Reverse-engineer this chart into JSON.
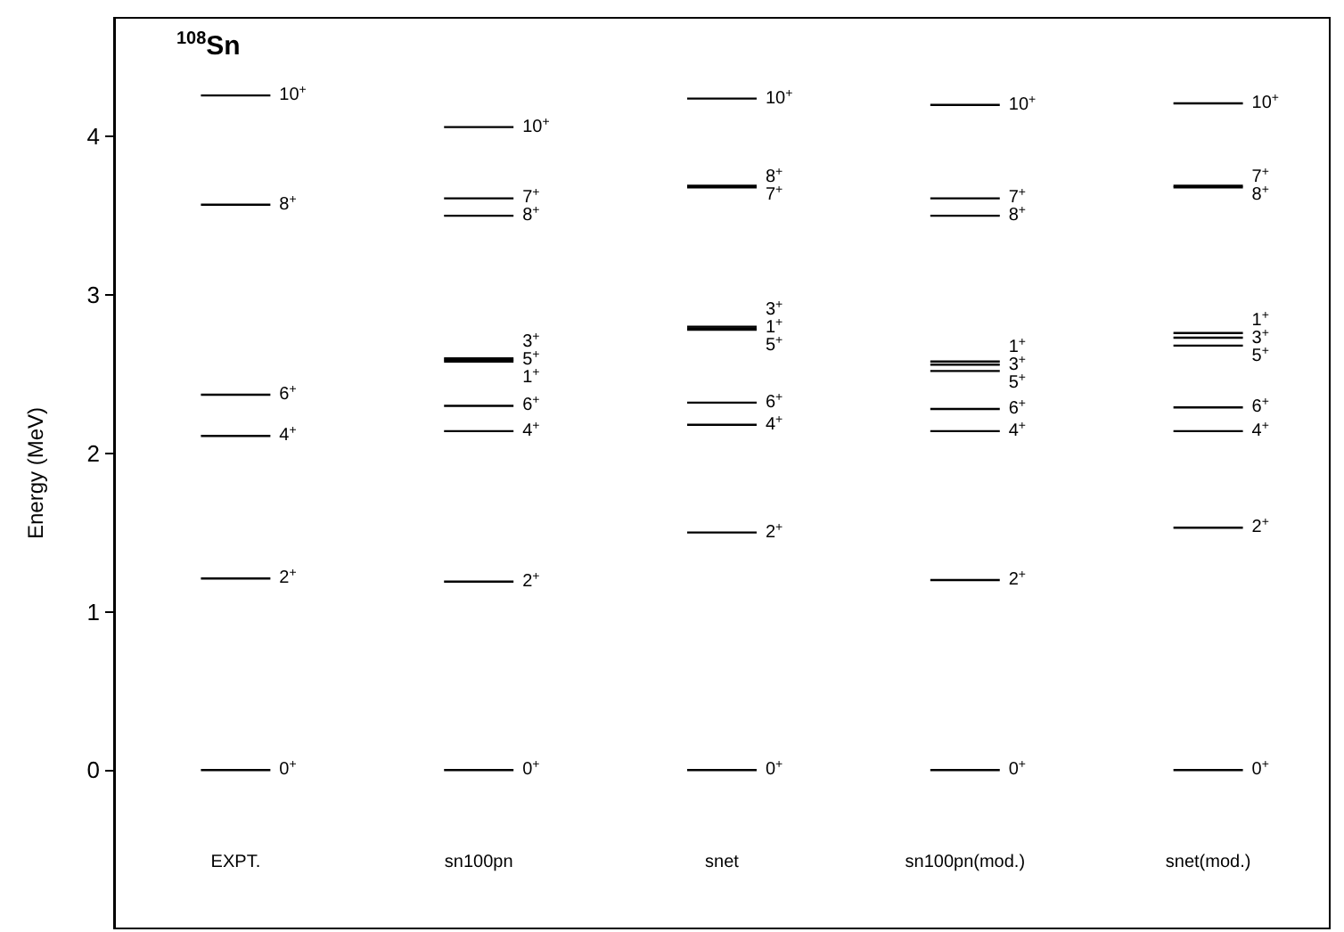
{
  "chart_data": {
    "type": "line",
    "title": "$^{108}$Sn",
    "ylabel": "Energy (MeV)",
    "marker": "none",
    "categories": [
      null,
      null,
      null,
      "EXPT.",
      null,
      null,
      null,
      null,
      null,
      null,
      "sn100pn",
      null,
      null,
      null,
      null,
      null,
      null,
      "snet",
      null,
      null,
      null,
      null,
      null,
      null,
      "sn100pn(mod.)",
      null,
      null,
      null,
      null,
      null,
      null,
      "snet(mod.)",
      null,
      null,
      null
    ],
    "ylim": [
      -1,
      4.75
    ],
    "yticks": [
      0,
      1,
      2,
      3,
      4
    ],
    "series": [
      {
        "color": "#000000",
        "values": [
          null,
          null,
          0,
          0,
          0,
          null,
          null,
          null,
          null,
          null,
          null,
          null,
          null,
          null,
          null,
          null,
          null,
          null,
          null,
          null,
          null,
          null,
          null,
          null,
          null,
          null,
          null,
          null,
          null,
          null,
          null,
          null,
          null,
          null,
          null
        ]
      },
      {
        "color": "#000000",
        "values": [
          null,
          null,
          1.21,
          1.21,
          1.21,
          null,
          null,
          null,
          null,
          null,
          null,
          null,
          null,
          null,
          null,
          null,
          null,
          null,
          null,
          null,
          null,
          null,
          null,
          null,
          null,
          null,
          null,
          null,
          null,
          null,
          null,
          null,
          null,
          null,
          null
        ]
      },
      {
        "color": "#000000",
        "values": [
          null,
          null,
          2.11,
          2.11,
          2.11,
          null,
          null,
          null,
          null,
          null,
          null,
          null,
          null,
          null,
          null,
          null,
          null,
          null,
          null,
          null,
          null,
          null,
          null,
          null,
          null,
          null,
          null,
          null,
          null,
          null,
          null,
          null,
          null,
          null,
          null
        ]
      },
      {
        "color": "#000000",
        "values": [
          null,
          null,
          2.37,
          2.37,
          2.37,
          null,
          null,
          null,
          null,
          null,
          null,
          null,
          null,
          null,
          null,
          null,
          null,
          null,
          null,
          null,
          null,
          null,
          null,
          null,
          null,
          null,
          null,
          null,
          null,
          null,
          null,
          null,
          null,
          null,
          null
        ]
      },
      {
        "color": "#000000",
        "values": [
          null,
          null,
          3.57,
          3.57,
          3.57,
          null,
          null,
          null,
          null,
          null,
          null,
          null,
          null,
          null,
          null,
          null,
          null,
          null,
          null,
          null,
          null,
          null,
          null,
          null,
          null,
          null,
          null,
          null,
          null,
          null,
          null,
          null,
          null,
          null,
          null
        ]
      },
      {
        "color": "#000000",
        "values": [
          null,
          null,
          4.26,
          4.26,
          4.26,
          null,
          null,
          null,
          null,
          null,
          null,
          null,
          null,
          null,
          null,
          null,
          null,
          null,
          null,
          null,
          null,
          null,
          null,
          null,
          null,
          null,
          null,
          null,
          null,
          null,
          null,
          null,
          null,
          null,
          null
        ]
      },
      {
        "color": "#000000",
        "values": [
          null,
          null,
          null,
          null,
          null,
          null,
          null,
          null,
          null,
          0,
          0,
          0,
          null,
          null,
          null,
          null,
          null,
          null,
          null,
          null,
          null,
          null,
          null,
          null,
          null,
          null,
          null,
          null,
          null,
          null,
          null,
          null,
          null,
          null,
          null
        ]
      },
      {
        "color": "#000000",
        "values": [
          null,
          null,
          null,
          null,
          null,
          null,
          null,
          null,
          null,
          1.19,
          1.19,
          1.19,
          null,
          null,
          null,
          null,
          null,
          null,
          null,
          null,
          null,
          null,
          null,
          null,
          null,
          null,
          null,
          null,
          null,
          null,
          null,
          null,
          null,
          null,
          null
        ]
      },
      {
        "color": "#000000",
        "values": [
          null,
          null,
          null,
          null,
          null,
          null,
          null,
          null,
          null,
          2.14,
          2.14,
          2.14,
          null,
          null,
          null,
          null,
          null,
          null,
          null,
          null,
          null,
          null,
          null,
          null,
          null,
          null,
          null,
          null,
          null,
          null,
          null,
          null,
          null,
          null,
          null
        ]
      },
      {
        "color": "#000000",
        "values": [
          null,
          null,
          null,
          null,
          null,
          null,
          null,
          null,
          null,
          2.3,
          2.3,
          2.3,
          null,
          null,
          null,
          null,
          null,
          null,
          null,
          null,
          null,
          null,
          null,
          null,
          null,
          null,
          null,
          null,
          null,
          null,
          null,
          null,
          null,
          null,
          null
        ]
      },
      {
        "color": "#000000",
        "values": [
          null,
          null,
          null,
          null,
          null,
          null,
          null,
          null,
          null,
          2.58,
          2.58,
          2.58,
          null,
          null,
          null,
          null,
          null,
          null,
          null,
          null,
          null,
          null,
          null,
          null,
          null,
          null,
          null,
          null,
          null,
          null,
          null,
          null,
          null,
          null,
          null
        ]
      },
      {
        "color": "#000000",
        "values": [
          null,
          null,
          null,
          null,
          null,
          null,
          null,
          null,
          null,
          2.59,
          2.59,
          2.59,
          null,
          null,
          null,
          null,
          null,
          null,
          null,
          null,
          null,
          null,
          null,
          null,
          null,
          null,
          null,
          null,
          null,
          null,
          null,
          null,
          null,
          null,
          null
        ]
      },
      {
        "color": "#000000",
        "values": [
          null,
          null,
          null,
          null,
          null,
          null,
          null,
          null,
          null,
          2.6,
          2.6,
          2.6,
          null,
          null,
          null,
          null,
          null,
          null,
          null,
          null,
          null,
          null,
          null,
          null,
          null,
          null,
          null,
          null,
          null,
          null,
          null,
          null,
          null,
          null,
          null
        ]
      },
      {
        "color": "#000000",
        "values": [
          null,
          null,
          null,
          null,
          null,
          null,
          null,
          null,
          null,
          3.5,
          3.5,
          3.5,
          null,
          null,
          null,
          null,
          null,
          null,
          null,
          null,
          null,
          null,
          null,
          null,
          null,
          null,
          null,
          null,
          null,
          null,
          null,
          null,
          null,
          null,
          null
        ]
      },
      {
        "color": "#000000",
        "values": [
          null,
          null,
          null,
          null,
          null,
          null,
          null,
          null,
          null,
          3.61,
          3.61,
          3.61,
          null,
          null,
          null,
          null,
          null,
          null,
          null,
          null,
          null,
          null,
          null,
          null,
          null,
          null,
          null,
          null,
          null,
          null,
          null,
          null,
          null,
          null,
          null
        ]
      },
      {
        "color": "#000000",
        "values": [
          null,
          null,
          null,
          null,
          null,
          null,
          null,
          null,
          null,
          4.06,
          4.06,
          4.06,
          null,
          null,
          null,
          null,
          null,
          null,
          null,
          null,
          null,
          null,
          null,
          null,
          null,
          null,
          null,
          null,
          null,
          null,
          null,
          null,
          null,
          null,
          null
        ]
      },
      {
        "color": "#000000",
        "values": [
          null,
          null,
          null,
          null,
          null,
          null,
          null,
          null,
          null,
          null,
          null,
          null,
          null,
          null,
          null,
          null,
          0,
          0,
          0,
          null,
          null,
          null,
          null,
          null,
          null,
          null,
          null,
          null,
          null,
          null,
          null,
          null,
          null,
          null,
          null
        ]
      },
      {
        "color": "#000000",
        "values": [
          null,
          null,
          null,
          null,
          null,
          null,
          null,
          null,
          null,
          null,
          null,
          null,
          null,
          null,
          null,
          null,
          1.5,
          1.5,
          1.5,
          null,
          null,
          null,
          null,
          null,
          null,
          null,
          null,
          null,
          null,
          null,
          null,
          null,
          null,
          null,
          null
        ]
      },
      {
        "color": "#000000",
        "values": [
          null,
          null,
          null,
          null,
          null,
          null,
          null,
          null,
          null,
          null,
          null,
          null,
          null,
          null,
          null,
          null,
          2.18,
          2.18,
          2.18,
          null,
          null,
          null,
          null,
          null,
          null,
          null,
          null,
          null,
          null,
          null,
          null,
          null,
          null,
          null,
          null
        ]
      },
      {
        "color": "#000000",
        "values": [
          null,
          null,
          null,
          null,
          null,
          null,
          null,
          null,
          null,
          null,
          null,
          null,
          null,
          null,
          null,
          null,
          2.32,
          2.32,
          2.32,
          null,
          null,
          null,
          null,
          null,
          null,
          null,
          null,
          null,
          null,
          null,
          null,
          null,
          null,
          null,
          null
        ]
      },
      {
        "color": "#000000",
        "values": [
          null,
          null,
          null,
          null,
          null,
          null,
          null,
          null,
          null,
          null,
          null,
          null,
          null,
          null,
          null,
          null,
          2.78,
          2.78,
          2.78,
          null,
          null,
          null,
          null,
          null,
          null,
          null,
          null,
          null,
          null,
          null,
          null,
          null,
          null,
          null,
          null
        ]
      },
      {
        "color": "#000000",
        "values": [
          null,
          null,
          null,
          null,
          null,
          null,
          null,
          null,
          null,
          null,
          null,
          null,
          null,
          null,
          null,
          null,
          2.79,
          2.79,
          2.79,
          null,
          null,
          null,
          null,
          null,
          null,
          null,
          null,
          null,
          null,
          null,
          null,
          null,
          null,
          null,
          null
        ]
      },
      {
        "color": "#000000",
        "values": [
          null,
          null,
          null,
          null,
          null,
          null,
          null,
          null,
          null,
          null,
          null,
          null,
          null,
          null,
          null,
          null,
          2.8,
          2.8,
          2.8,
          null,
          null,
          null,
          null,
          null,
          null,
          null,
          null,
          null,
          null,
          null,
          null,
          null,
          null,
          null,
          null
        ]
      },
      {
        "color": "#000000",
        "values": [
          null,
          null,
          null,
          null,
          null,
          null,
          null,
          null,
          null,
          null,
          null,
          null,
          null,
          null,
          null,
          null,
          3.68,
          3.68,
          3.68,
          null,
          null,
          null,
          null,
          null,
          null,
          null,
          null,
          null,
          null,
          null,
          null,
          null,
          null,
          null,
          null
        ]
      },
      {
        "color": "#000000",
        "values": [
          null,
          null,
          null,
          null,
          null,
          null,
          null,
          null,
          null,
          null,
          null,
          null,
          null,
          null,
          null,
          null,
          3.69,
          3.69,
          3.69,
          null,
          null,
          null,
          null,
          null,
          null,
          null,
          null,
          null,
          null,
          null,
          null,
          null,
          null,
          null,
          null
        ]
      },
      {
        "color": "#000000",
        "values": [
          null,
          null,
          null,
          null,
          null,
          null,
          null,
          null,
          null,
          null,
          null,
          null,
          null,
          null,
          null,
          null,
          4.24,
          4.24,
          4.24,
          null,
          null,
          null,
          null,
          null,
          null,
          null,
          null,
          null,
          null,
          null,
          null,
          null,
          null,
          null,
          null
        ]
      },
      {
        "color": "#000000",
        "values": [
          null,
          null,
          null,
          null,
          null,
          null,
          null,
          null,
          null,
          null,
          null,
          null,
          null,
          null,
          null,
          null,
          null,
          null,
          null,
          null,
          null,
          null,
          null,
          0,
          0,
          0,
          null,
          null,
          null,
          null,
          null,
          null,
          null,
          null,
          null
        ]
      },
      {
        "color": "#000000",
        "values": [
          null,
          null,
          null,
          null,
          null,
          null,
          null,
          null,
          null,
          null,
          null,
          null,
          null,
          null,
          null,
          null,
          null,
          null,
          null,
          null,
          null,
          null,
          null,
          1.2,
          1.2,
          1.2,
          null,
          null,
          null,
          null,
          null,
          null,
          null,
          null,
          null
        ]
      },
      {
        "color": "#000000",
        "values": [
          null,
          null,
          null,
          null,
          null,
          null,
          null,
          null,
          null,
          null,
          null,
          null,
          null,
          null,
          null,
          null,
          null,
          null,
          null,
          null,
          null,
          null,
          null,
          2.14,
          2.14,
          2.14,
          null,
          null,
          null,
          null,
          null,
          null,
          null,
          null,
          null
        ]
      },
      {
        "color": "#000000",
        "values": [
          null,
          null,
          null,
          null,
          null,
          null,
          null,
          null,
          null,
          null,
          null,
          null,
          null,
          null,
          null,
          null,
          null,
          null,
          null,
          null,
          null,
          null,
          null,
          2.28,
          2.28,
          2.28,
          null,
          null,
          null,
          null,
          null,
          null,
          null,
          null,
          null
        ]
      },
      {
        "color": "#000000",
        "values": [
          null,
          null,
          null,
          null,
          null,
          null,
          null,
          null,
          null,
          null,
          null,
          null,
          null,
          null,
          null,
          null,
          null,
          null,
          null,
          null,
          null,
          null,
          null,
          2.52,
          2.52,
          2.52,
          null,
          null,
          null,
          null,
          null,
          null,
          null,
          null,
          null
        ]
      },
      {
        "color": "#000000",
        "values": [
          null,
          null,
          null,
          null,
          null,
          null,
          null,
          null,
          null,
          null,
          null,
          null,
          null,
          null,
          null,
          null,
          null,
          null,
          null,
          null,
          null,
          null,
          null,
          2.56,
          2.56,
          2.56,
          null,
          null,
          null,
          null,
          null,
          null,
          null,
          null,
          null
        ]
      },
      {
        "color": "#000000",
        "values": [
          null,
          null,
          null,
          null,
          null,
          null,
          null,
          null,
          null,
          null,
          null,
          null,
          null,
          null,
          null,
          null,
          null,
          null,
          null,
          null,
          null,
          null,
          null,
          2.58,
          2.58,
          2.58,
          null,
          null,
          null,
          null,
          null,
          null,
          null,
          null,
          null
        ]
      },
      {
        "color": "#000000",
        "values": [
          null,
          null,
          null,
          null,
          null,
          null,
          null,
          null,
          null,
          null,
          null,
          null,
          null,
          null,
          null,
          null,
          null,
          null,
          null,
          null,
          null,
          null,
          null,
          3.5,
          3.5,
          3.5,
          null,
          null,
          null,
          null,
          null,
          null,
          null,
          null,
          null
        ]
      },
      {
        "color": "#000000",
        "values": [
          null,
          null,
          null,
          null,
          null,
          null,
          null,
          null,
          null,
          null,
          null,
          null,
          null,
          null,
          null,
          null,
          null,
          null,
          null,
          null,
          null,
          null,
          null,
          3.61,
          3.61,
          3.61,
          null,
          null,
          null,
          null,
          null,
          null,
          null,
          null,
          null
        ]
      },
      {
        "color": "#000000",
        "values": [
          null,
          null,
          null,
          null,
          null,
          null,
          null,
          null,
          null,
          null,
          null,
          null,
          null,
          null,
          null,
          null,
          null,
          null,
          null,
          null,
          null,
          null,
          null,
          4.2,
          4.2,
          4.2,
          null,
          null,
          null,
          null,
          null,
          null,
          null,
          null,
          null
        ]
      },
      {
        "color": "#000000",
        "values": [
          null,
          null,
          null,
          null,
          null,
          null,
          null,
          null,
          null,
          null,
          null,
          null,
          null,
          null,
          null,
          null,
          null,
          null,
          null,
          null,
          null,
          null,
          null,
          null,
          null,
          null,
          null,
          null,
          null,
          null,
          0,
          0,
          0,
          null,
          null
        ]
      },
      {
        "color": "#000000",
        "values": [
          null,
          null,
          null,
          null,
          null,
          null,
          null,
          null,
          null,
          null,
          null,
          null,
          null,
          null,
          null,
          null,
          null,
          null,
          null,
          null,
          null,
          null,
          null,
          null,
          null,
          null,
          null,
          null,
          null,
          null,
          1.53,
          1.53,
          1.53,
          null,
          null
        ]
      },
      {
        "color": "#000000",
        "values": [
          null,
          null,
          null,
          null,
          null,
          null,
          null,
          null,
          null,
          null,
          null,
          null,
          null,
          null,
          null,
          null,
          null,
          null,
          null,
          null,
          null,
          null,
          null,
          null,
          null,
          null,
          null,
          null,
          null,
          null,
          2.14,
          2.14,
          2.14,
          null,
          null
        ]
      },
      {
        "color": "#000000",
        "values": [
          null,
          null,
          null,
          null,
          null,
          null,
          null,
          null,
          null,
          null,
          null,
          null,
          null,
          null,
          null,
          null,
          null,
          null,
          null,
          null,
          null,
          null,
          null,
          null,
          null,
          null,
          null,
          null,
          null,
          null,
          2.29,
          2.29,
          2.29,
          null,
          null
        ]
      },
      {
        "color": "#000000",
        "values": [
          null,
          null,
          null,
          null,
          null,
          null,
          null,
          null,
          null,
          null,
          null,
          null,
          null,
          null,
          null,
          null,
          null,
          null,
          null,
          null,
          null,
          null,
          null,
          null,
          null,
          null,
          null,
          null,
          null,
          null,
          2.68,
          2.68,
          2.68,
          null,
          null
        ]
      },
      {
        "color": "#000000",
        "values": [
          null,
          null,
          null,
          null,
          null,
          null,
          null,
          null,
          null,
          null,
          null,
          null,
          null,
          null,
          null,
          null,
          null,
          null,
          null,
          null,
          null,
          null,
          null,
          null,
          null,
          null,
          null,
          null,
          null,
          null,
          2.73,
          2.73,
          2.73,
          null,
          null
        ]
      },
      {
        "color": "#000000",
        "values": [
          null,
          null,
          null,
          null,
          null,
          null,
          null,
          null,
          null,
          null,
          null,
          null,
          null,
          null,
          null,
          null,
          null,
          null,
          null,
          null,
          null,
          null,
          null,
          null,
          null,
          null,
          null,
          null,
          null,
          null,
          2.76,
          2.76,
          2.76,
          null,
          null
        ]
      },
      {
        "color": "#000000",
        "values": [
          null,
          null,
          null,
          null,
          null,
          null,
          null,
          null,
          null,
          null,
          null,
          null,
          null,
          null,
          null,
          null,
          null,
          null,
          null,
          null,
          null,
          null,
          null,
          null,
          null,
          null,
          null,
          null,
          null,
          null,
          3.68,
          3.68,
          3.68,
          null,
          null
        ]
      },
      {
        "color": "#000000",
        "values": [
          null,
          null,
          null,
          null,
          null,
          null,
          null,
          null,
          null,
          null,
          null,
          null,
          null,
          null,
          null,
          null,
          null,
          null,
          null,
          null,
          null,
          null,
          null,
          null,
          null,
          null,
          null,
          null,
          null,
          null,
          3.69,
          3.69,
          3.69,
          null,
          null
        ]
      },
      {
        "color": "#000000",
        "values": [
          null,
          null,
          null,
          null,
          null,
          null,
          null,
          null,
          null,
          null,
          null,
          null,
          null,
          null,
          null,
          null,
          null,
          null,
          null,
          null,
          null,
          null,
          null,
          null,
          null,
          null,
          null,
          null,
          null,
          null,
          4.21,
          4.21,
          4.21,
          null,
          null
        ]
      }
    ],
    "annotations": [
      {
        "text": "0$^{+}$",
        "x": "EXPT.",
        "y": 0
      },
      {
        "text": "2$^{+}$",
        "x": "EXPT.",
        "y": 1.21
      },
      {
        "text": "4$^{+}$",
        "x": "EXPT.",
        "y": 2.11
      },
      {
        "text": "6$^{+}$",
        "x": "EXPT.",
        "y": 2.37
      },
      {
        "text": "8$^{+}$",
        "x": "EXPT.",
        "y": 3.57
      },
      {
        "text": "10$^{+}$",
        "x": "EXPT.",
        "y": 4.26
      },
      {
        "text": "0$^{+}$",
        "x": "sn100pn",
        "y": 0
      },
      {
        "text": "2$^{+}$",
        "x": "sn100pn",
        "y": 1.19
      },
      {
        "text": "4$^{+}$",
        "x": "sn100pn",
        "y": 2.14
      },
      {
        "text": "6$^{+}$",
        "x": "sn100pn",
        "y": 2.3
      },
      {
        "text": "1$^{+}$",
        "x": "sn100pn",
        "y": 2.58
      },
      {
        "text": "5$^{+}$",
        "x": "sn100pn",
        "y": 2.59
      },
      {
        "text": "3$^{+}$",
        "x": "sn100pn",
        "y": 2.6
      },
      {
        "text": "8$^{+}$",
        "x": "sn100pn",
        "y": 3.5
      },
      {
        "text": "7$^{+}$",
        "x": "sn100pn",
        "y": 3.61
      },
      {
        "text": "10$^{+}$",
        "x": "sn100pn",
        "y": 4.06
      },
      {
        "text": "0$^{+}$",
        "x": "snet",
        "y": 0
      },
      {
        "text": "2$^{+}$",
        "x": "snet",
        "y": 1.5
      },
      {
        "text": "4$^{+}$",
        "x": "snet",
        "y": 2.18
      },
      {
        "text": "6$^{+}$",
        "x": "snet",
        "y": 2.32
      },
      {
        "text": "5$^{+}$",
        "x": "snet",
        "y": 2.78
      },
      {
        "text": "1$^{+}$",
        "x": "snet",
        "y": 2.79
      },
      {
        "text": "3$^{+}$",
        "x": "snet",
        "y": 2.8
      },
      {
        "text": "7$^{+}$",
        "x": "snet",
        "y": 3.68
      },
      {
        "text": "8$^{+}$",
        "x": "snet",
        "y": 3.69
      },
      {
        "text": "10$^{+}$",
        "x": "snet",
        "y": 4.24
      },
      {
        "text": "0$^{+}$",
        "x": "sn100pn(mod.)",
        "y": 0
      },
      {
        "text": "2$^{+}$",
        "x": "sn100pn(mod.)",
        "y": 1.2
      },
      {
        "text": "4$^{+}$",
        "x": "sn100pn(mod.)",
        "y": 2.14
      },
      {
        "text": "6$^{+}$",
        "x": "sn100pn(mod.)",
        "y": 2.28
      },
      {
        "text": "5$^{+}$",
        "x": "sn100pn(mod.)",
        "y": 2.52
      },
      {
        "text": "3$^{+}$",
        "x": "sn100pn(mod.)",
        "y": 2.56
      },
      {
        "text": "1$^{+}$",
        "x": "sn100pn(mod.)",
        "y": 2.58
      },
      {
        "text": "8$^{+}$",
        "x": "sn100pn(mod.)",
        "y": 3.5
      },
      {
        "text": "7$^{+}$",
        "x": "sn100pn(mod.)",
        "y": 3.61
      },
      {
        "text": "10$^{+}$",
        "x": "sn100pn(mod.)",
        "y": 4.2
      },
      {
        "text": "0$^{+}$",
        "x": "snet(mod.)",
        "y": 0
      },
      {
        "text": "2$^{+}$",
        "x": "snet(mod.)",
        "y": 1.53
      },
      {
        "text": "4$^{+}$",
        "x": "snet(mod.)",
        "y": 2.14
      },
      {
        "text": "6$^{+}$",
        "x": "snet(mod.)",
        "y": 2.29
      },
      {
        "text": "5$^{+}$",
        "x": "snet(mod.)",
        "y": 2.68
      },
      {
        "text": "3$^{+}$",
        "x": "snet(mod.)",
        "y": 2.73
      },
      {
        "text": "1$^{+}$",
        "x": "snet(mod.)",
        "y": 2.76
      },
      {
        "text": "8$^{+}$",
        "x": "snet(mod.)",
        "y": 3.68
      },
      {
        "text": "7$^{+}$",
        "x": "snet(mod.)",
        "y": 3.69
      },
      {
        "text": "10$^{+}$",
        "x": "snet(mod.)",
        "y": 4.21
      }
    ]
  }
}
